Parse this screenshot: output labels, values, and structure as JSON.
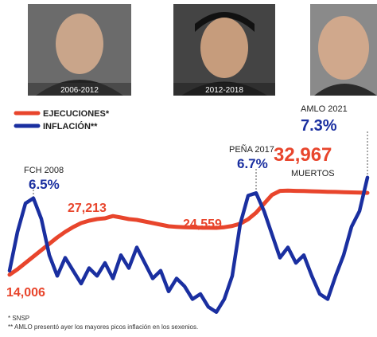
{
  "chart_data": {
    "type": "line",
    "categories": [
      null,
      null,
      null,
      null,
      null,
      null,
      null,
      null,
      null,
      null,
      null,
      null,
      null,
      null,
      null,
      null,
      null,
      null,
      null,
      null,
      null,
      null,
      null,
      null,
      null,
      null,
      null,
      null,
      null,
      null,
      null,
      null,
      null,
      null,
      null,
      null,
      null,
      null,
      null,
      null,
      null,
      null,
      null,
      null,
      null,
      null
    ],
    "series": [
      {
        "name": "EJECUCIONES*",
        "color": "#e8452c",
        "values": [
          14006,
          15231,
          16667,
          18103,
          19538,
          20974,
          22410,
          23667,
          24744,
          25641,
          26179,
          26538,
          26718,
          27213,
          26897,
          26538,
          26359,
          26000,
          25641,
          25282,
          24923,
          24800,
          24700,
          24650,
          24600,
          24580,
          24559,
          24700,
          25000,
          25500,
          26500,
          28000,
          30000,
          32000,
          32900,
          32967,
          32900,
          32850,
          32800,
          32750,
          32700,
          32650,
          32600,
          32550,
          32500,
          32450
        ],
        "value_labels": [
          "14,006",
          null,
          null,
          null,
          null,
          null,
          null,
          null,
          null,
          null,
          null,
          null,
          null,
          "27,213",
          null,
          null,
          null,
          null,
          null,
          null,
          null,
          null,
          null,
          null,
          null,
          null,
          "24,559",
          null,
          null,
          null,
          null,
          null,
          null,
          null,
          null,
          "32,967",
          null,
          null,
          null,
          null,
          null,
          null,
          null,
          null,
          null,
          null
        ]
      },
      {
        "name": "INFLACIÓN**",
        "color": "#1a2fa0",
        "axis": "y2",
        "values": [
          3.7,
          5.2,
          6.3,
          6.5,
          5.7,
          4.3,
          3.5,
          4.2,
          3.7,
          3.2,
          3.8,
          3.5,
          4.0,
          3.4,
          4.3,
          3.8,
          4.6,
          4.0,
          3.4,
          3.7,
          2.9,
          3.4,
          3.1,
          2.6,
          2.8,
          2.3,
          2.1,
          2.6,
          3.5,
          5.5,
          6.6,
          6.7,
          6.0,
          5.1,
          4.2,
          4.6,
          4.0,
          4.3,
          3.5,
          2.8,
          2.6,
          3.5,
          4.3,
          5.4,
          6.0,
          7.3
        ],
        "value_labels": [
          null,
          null,
          null,
          "6.5%",
          null,
          null,
          null,
          null,
          null,
          null,
          null,
          null,
          null,
          null,
          null,
          null,
          null,
          null,
          null,
          null,
          null,
          null,
          null,
          null,
          null,
          null,
          null,
          null,
          null,
          null,
          null,
          "6.7%",
          null,
          null,
          null,
          null,
          null,
          null,
          null,
          null,
          null,
          null,
          null,
          null,
          null,
          "7.3%"
        ]
      }
    ],
    "ylim": [
      5000,
      40000
    ],
    "y2lim": [
      2,
      8
    ],
    "annotations": [
      "FCH 2008",
      "PEÑA 2017",
      "AMLO 2021",
      "MUERTOS"
    ]
  },
  "photos": [
    {
      "caption": "2006-2012"
    },
    {
      "caption": "2012-2018"
    }
  ],
  "footnotes": [
    "* SNSP",
    "** AMLO presentó ayer los mayores picos inflación en los sexenios."
  ]
}
